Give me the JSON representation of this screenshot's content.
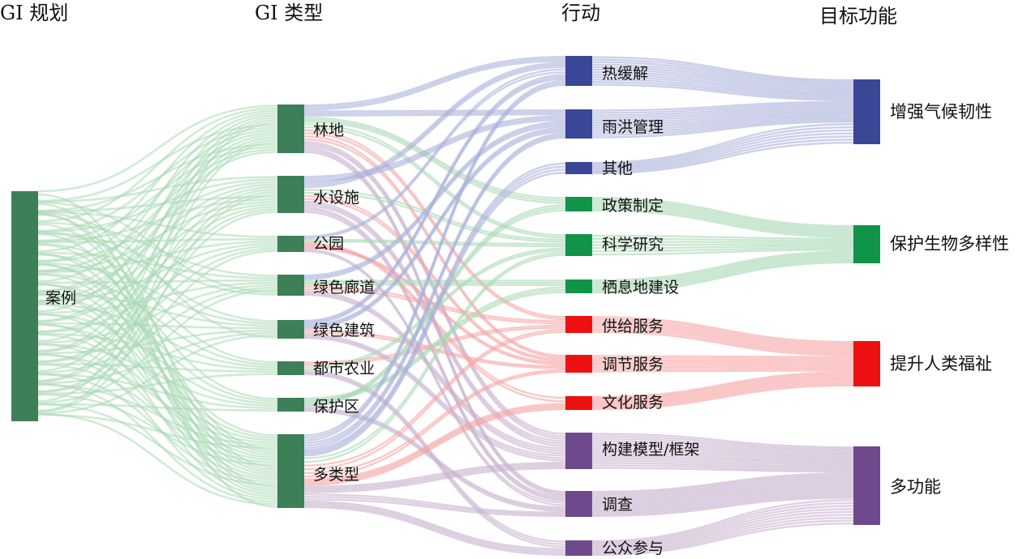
{
  "columns": [
    {
      "id": "c0",
      "title": "GI 规划"
    },
    {
      "id": "c1",
      "title": "GI 类型"
    },
    {
      "id": "c2",
      "title": "行动"
    },
    {
      "id": "c3",
      "title": "目标功能"
    }
  ],
  "colors": {
    "green": "#3d7f57",
    "green_link": "#a9d8b4",
    "blue": "#3a4796",
    "blue_link": "#aab0db",
    "bright_green": "#10944a",
    "red": "#ee1111",
    "red_link": "#f6a3a3",
    "purple": "#6e4a8c",
    "purple_link": "#c8b3cf"
  },
  "nodes": {
    "case": {
      "label": "案例"
    },
    "forest": {
      "label": "林地"
    },
    "water": {
      "label": "水设施"
    },
    "park": {
      "label": "公园"
    },
    "corridor": {
      "label": "绿色廊道"
    },
    "building": {
      "label": "绿色建筑"
    },
    "agri": {
      "label": "都市农业"
    },
    "reserve": {
      "label": "保护区"
    },
    "multi": {
      "label": "多类型"
    },
    "heat": {
      "label": "热缓解"
    },
    "storm": {
      "label": "雨洪管理"
    },
    "other": {
      "label": "其他"
    },
    "policy": {
      "label": "政策制定"
    },
    "science": {
      "label": "科学研究"
    },
    "habitat": {
      "label": "栖息地建设"
    },
    "supply": {
      "label": "供给服务"
    },
    "regulate": {
      "label": "调节服务"
    },
    "culture": {
      "label": "文化服务"
    },
    "model": {
      "label": "构建模型/框架"
    },
    "survey": {
      "label": "调查"
    },
    "public": {
      "label": "公众参与"
    },
    "resilience": {
      "label": "增强气候韧性"
    },
    "biodiversity": {
      "label": "保护生物多样性"
    },
    "wellbeing": {
      "label": "提升人类福祉"
    },
    "multifunction": {
      "label": "多功能"
    }
  },
  "links": [
    {
      "source": "forest",
      "target": "heat",
      "color": "blue_link"
    },
    {
      "source": "forest",
      "target": "storm",
      "color": "blue_link"
    },
    {
      "source": "forest",
      "target": "policy",
      "color": "green_link"
    },
    {
      "source": "forest",
      "target": "science",
      "color": "green_link"
    },
    {
      "source": "forest",
      "target": "supply",
      "color": "red_link"
    },
    {
      "source": "forest",
      "target": "regulate",
      "color": "red_link"
    },
    {
      "source": "forest",
      "target": "model",
      "color": "purple_link"
    },
    {
      "source": "forest",
      "target": "survey",
      "color": "purple_link"
    },
    {
      "source": "water",
      "target": "storm",
      "color": "blue_link"
    },
    {
      "source": "water",
      "target": "heat",
      "color": "blue_link"
    },
    {
      "source": "water",
      "target": "science",
      "color": "green_link"
    },
    {
      "source": "water",
      "target": "regulate",
      "color": "red_link"
    },
    {
      "source": "water",
      "target": "model",
      "color": "purple_link"
    },
    {
      "source": "water",
      "target": "survey",
      "color": "purple_link"
    },
    {
      "source": "park",
      "target": "heat",
      "color": "blue_link"
    },
    {
      "source": "park",
      "target": "science",
      "color": "green_link"
    },
    {
      "source": "park",
      "target": "culture",
      "color": "red_link"
    },
    {
      "source": "park",
      "target": "regulate",
      "color": "red_link"
    },
    {
      "source": "park",
      "target": "survey",
      "color": "purple_link"
    },
    {
      "source": "corridor",
      "target": "storm",
      "color": "blue_link"
    },
    {
      "source": "corridor",
      "target": "habitat",
      "color": "green_link"
    },
    {
      "source": "corridor",
      "target": "supply",
      "color": "red_link"
    },
    {
      "source": "corridor",
      "target": "model",
      "color": "purple_link"
    },
    {
      "source": "building",
      "target": "heat",
      "color": "blue_link"
    },
    {
      "source": "building",
      "target": "storm",
      "color": "blue_link"
    },
    {
      "source": "building",
      "target": "regulate",
      "color": "red_link"
    },
    {
      "source": "building",
      "target": "model",
      "color": "purple_link"
    },
    {
      "source": "agri",
      "target": "supply",
      "color": "red_link"
    },
    {
      "source": "agri",
      "target": "science",
      "color": "green_link"
    },
    {
      "source": "agri",
      "target": "public",
      "color": "purple_link"
    },
    {
      "source": "reserve",
      "target": "habitat",
      "color": "green_link"
    },
    {
      "source": "reserve",
      "target": "policy",
      "color": "green_link"
    },
    {
      "source": "reserve",
      "target": "survey",
      "color": "purple_link"
    },
    {
      "source": "multi",
      "target": "heat",
      "color": "blue_link"
    },
    {
      "source": "multi",
      "target": "storm",
      "color": "blue_link"
    },
    {
      "source": "multi",
      "target": "other",
      "color": "blue_link"
    },
    {
      "source": "multi",
      "target": "science",
      "color": "green_link"
    },
    {
      "source": "multi",
      "target": "supply",
      "color": "red_link"
    },
    {
      "source": "multi",
      "target": "regulate",
      "color": "red_link"
    },
    {
      "source": "multi",
      "target": "culture",
      "color": "red_link"
    },
    {
      "source": "multi",
      "target": "model",
      "color": "purple_link"
    },
    {
      "source": "multi",
      "target": "survey",
      "color": "purple_link"
    },
    {
      "source": "multi",
      "target": "public",
      "color": "purple_link"
    },
    {
      "source": "heat",
      "target": "resilience",
      "color": "blue_link"
    },
    {
      "source": "storm",
      "target": "resilience",
      "color": "blue_link"
    },
    {
      "source": "other",
      "target": "resilience",
      "color": "blue_link"
    },
    {
      "source": "policy",
      "target": "biodiversity",
      "color": "green_link"
    },
    {
      "source": "science",
      "target": "biodiversity",
      "color": "green_link"
    },
    {
      "source": "habitat",
      "target": "biodiversity",
      "color": "green_link"
    },
    {
      "source": "supply",
      "target": "wellbeing",
      "color": "red_link"
    },
    {
      "source": "regulate",
      "target": "wellbeing",
      "color": "red_link"
    },
    {
      "source": "culture",
      "target": "wellbeing",
      "color": "red_link"
    },
    {
      "source": "model",
      "target": "multifunction",
      "color": "purple_link"
    },
    {
      "source": "survey",
      "target": "multifunction",
      "color": "purple_link"
    },
    {
      "source": "public",
      "target": "multifunction",
      "color": "purple_link"
    }
  ]
}
